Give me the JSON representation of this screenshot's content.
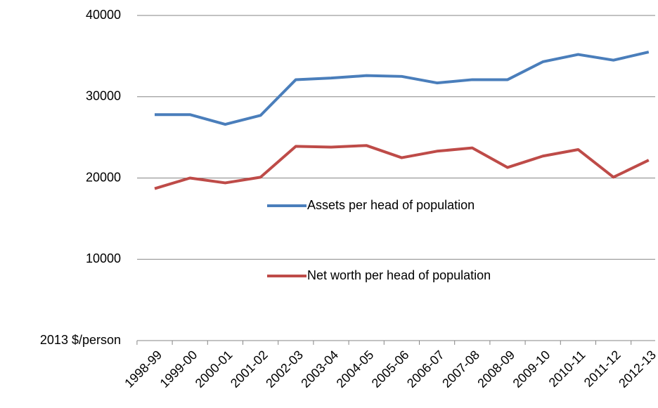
{
  "chart_data": {
    "type": "line",
    "categories": [
      "1998-99",
      "1999-00",
      "2000-01",
      "2001-02",
      "2002-03",
      "2003-04",
      "2004-05",
      "2005-06",
      "2006-07",
      "2007-08",
      "2008-09",
      "2009-10",
      "2010-11",
      "2011-12",
      "2012-13"
    ],
    "series": [
      {
        "name": "Assets per head of population",
        "color": "#4a7ebb",
        "values": [
          27800,
          27800,
          26600,
          27700,
          32100,
          32300,
          32600,
          32500,
          31700,
          32100,
          32100,
          34300,
          35200,
          34500,
          35500
        ]
      },
      {
        "name": "Net worth per head of population",
        "color": "#be4b48",
        "values": [
          18700,
          20000,
          19400,
          20100,
          23900,
          23800,
          24000,
          22500,
          23300,
          23700,
          21300,
          22700,
          23500,
          20100,
          22200
        ]
      }
    ],
    "ylim": [
      0,
      40000
    ],
    "yticks": [
      {
        "value": 0,
        "label": "2013 $/person"
      },
      10000,
      20000,
      30000,
      40000
    ],
    "grid": true
  }
}
